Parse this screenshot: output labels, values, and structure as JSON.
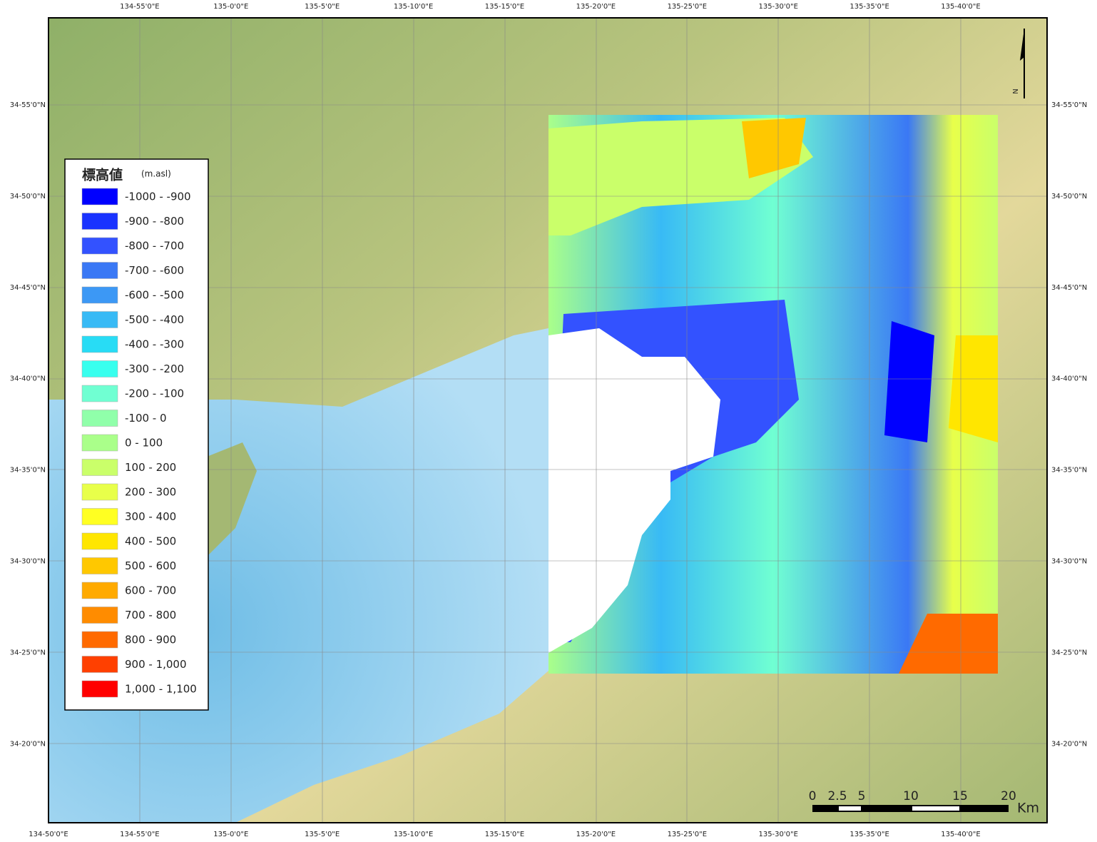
{
  "map": {
    "longitude_labels": [
      "134-50'0\"E",
      "134-55'0\"E",
      "135-0'0\"E",
      "135-5'0\"E",
      "135-10'0\"E",
      "135-15'0\"E",
      "135-20'0\"E",
      "135-25'0\"E",
      "135-30'0\"E",
      "135-35'0\"E",
      "135-40'0\"E"
    ],
    "latitude_labels": [
      "34-55'0\"N",
      "34-50'0\"N",
      "34-45'0\"N",
      "34-40'0\"N",
      "34-35'0\"N",
      "34-30'0\"N",
      "34-25'0\"N",
      "34-20'0\"N"
    ]
  },
  "legend": {
    "title": "標高値",
    "unit": "(m.asl)",
    "items": [
      {
        "label": "-1000 - -900",
        "color": "#0000ff"
      },
      {
        "label": "-900 - -800",
        "color": "#1a33ff"
      },
      {
        "label": "-800 - -700",
        "color": "#3352ff"
      },
      {
        "label": "-700 - -600",
        "color": "#3a78f5"
      },
      {
        "label": "-600 - -500",
        "color": "#3c98f5"
      },
      {
        "label": "-500 - -400",
        "color": "#38baf5"
      },
      {
        "label": "-400 - -300",
        "color": "#28dcf5"
      },
      {
        "label": "-300 - -200",
        "color": "#38ffee"
      },
      {
        "label": "-200 - -100",
        "color": "#70ffd2"
      },
      {
        "label": "-100 - 0",
        "color": "#90ffaa"
      },
      {
        "label": "0 - 100",
        "color": "#aaff8a"
      },
      {
        "label": "100 - 200",
        "color": "#caff6a"
      },
      {
        "label": "200 - 300",
        "color": "#e8ff4a"
      },
      {
        "label": "300 - 400",
        "color": "#ffff22"
      },
      {
        "label": "400 - 500",
        "color": "#ffe600"
      },
      {
        "label": "500 - 600",
        "color": "#ffc800"
      },
      {
        "label": "600 - 700",
        "color": "#ffaa00"
      },
      {
        "label": "700 - 800",
        "color": "#ff8c00"
      },
      {
        "label": "800 - 900",
        "color": "#ff6a00"
      },
      {
        "label": "900 - 1,000",
        "color": "#ff4000"
      },
      {
        "label": "1,000 - 1,100",
        "color": "#ff0000"
      }
    ]
  },
  "scale_bar": {
    "labels": [
      "0",
      "2.5",
      "5",
      "10",
      "15",
      "20"
    ],
    "unit": "Km"
  },
  "north_arrow": "N"
}
